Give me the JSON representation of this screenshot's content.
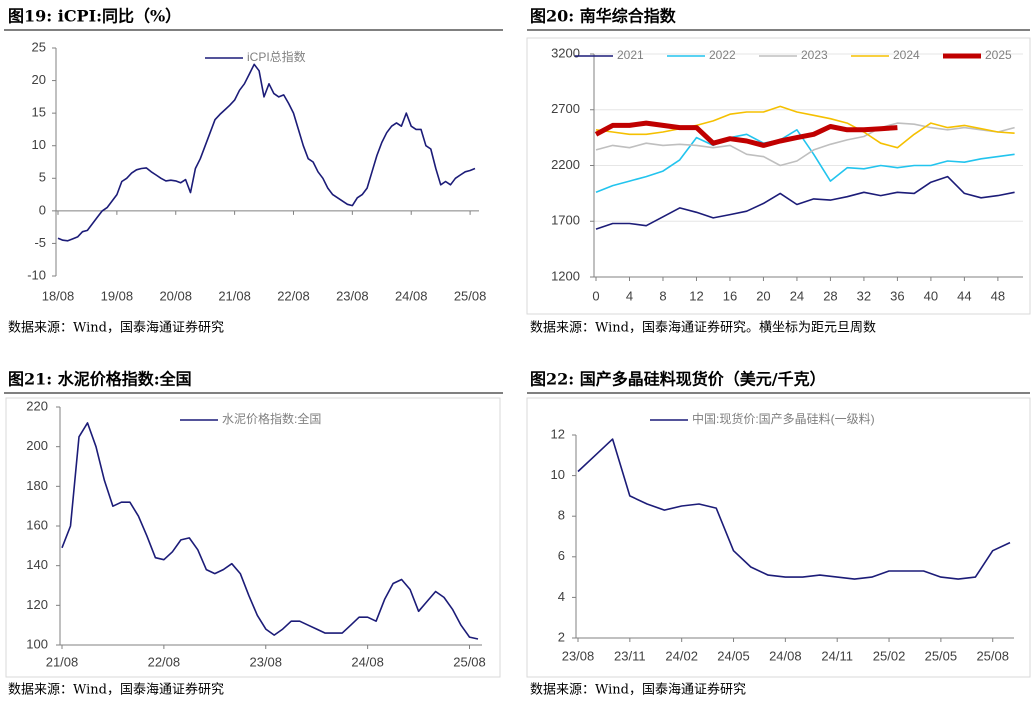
{
  "chart_data": [
    {
      "type": "line",
      "title": "图19: iCPI:同比（%）",
      "source": "数据来源：Wind，国泰海通证券研究",
      "categories": [
        "18/08",
        null,
        null,
        null,
        null,
        null,
        null,
        null,
        null,
        null,
        null,
        null,
        "19/08",
        null,
        null,
        null,
        null,
        null,
        null,
        null,
        null,
        null,
        null,
        null,
        "20/08",
        null,
        null,
        null,
        null,
        null,
        null,
        null,
        null,
        null,
        null,
        null,
        "21/08",
        null,
        null,
        null,
        null,
        null,
        null,
        null,
        null,
        null,
        null,
        null,
        "22/08",
        null,
        null,
        null,
        null,
        null,
        null,
        null,
        null,
        null,
        null,
        null,
        "23/08",
        null,
        null,
        null,
        null,
        null,
        null,
        null,
        null,
        null,
        null,
        null,
        "24/08",
        null,
        null,
        null,
        null,
        null,
        null,
        null,
        null,
        null,
        null,
        null,
        "25/08",
        null
      ],
      "series": [
        {
          "name": "iCPI总指数",
          "color": "#1c1c78",
          "values": [
            -4.2,
            -4.5,
            -4.6,
            -4.3,
            -4.0,
            -3.2,
            -3.0,
            -2.0,
            -1.0,
            0,
            0.5,
            1.5,
            2.5,
            4.5,
            5.0,
            5.8,
            6.3,
            6.5,
            6.6,
            6.0,
            5.5,
            5.0,
            4.6,
            4.7,
            4.6,
            4.3,
            4.8,
            2.8,
            6.5,
            8.0,
            10.0,
            12.0,
            14.0,
            14.8,
            15.5,
            16.2,
            17.0,
            18.5,
            19.5,
            21.0,
            22.5,
            21.5,
            17.5,
            19.5,
            18.0,
            17.5,
            17.8,
            16.5,
            15.0,
            12.5,
            10.0,
            8.0,
            7.5,
            6.0,
            5.0,
            3.5,
            2.5,
            2.0,
            1.5,
            1.0,
            0.8,
            2.0,
            2.5,
            3.5,
            6.0,
            8.5,
            10.5,
            12.0,
            13.0,
            13.5,
            13.0,
            15.0,
            13.0,
            12.5,
            12.5,
            10.0,
            9.5,
            6.5,
            4.0,
            4.5,
            4.0,
            5.0,
            5.5,
            6.0,
            6.2,
            6.5
          ]
        }
      ],
      "ylim": [
        -10,
        25
      ],
      "yticks": [
        -10,
        -5,
        0,
        5,
        10,
        15,
        20,
        25
      ],
      "grid": false,
      "legend": "top"
    },
    {
      "type": "line",
      "title": "图20: 南华综合指数",
      "source": "数据来源：Wind，国泰海通证券研究。横坐标为距元旦周数",
      "x": [
        0,
        2,
        4,
        6,
        8,
        10,
        12,
        14,
        16,
        18,
        20,
        22,
        24,
        26,
        28,
        30,
        32,
        34,
        36,
        38,
        40,
        42,
        44,
        46,
        48,
        50
      ],
      "series": [
        {
          "name": "2021",
          "color": "#1c1c78",
          "values": [
            1630,
            1680,
            1680,
            1660,
            1740,
            1820,
            1780,
            1730,
            1760,
            1790,
            1860,
            1950,
            1850,
            1900,
            1890,
            1920,
            1960,
            1930,
            1960,
            1950,
            2050,
            2100,
            1950,
            1910,
            1930,
            1960
          ]
        },
        {
          "name": "2022",
          "color": "#22c4ee",
          "values": [
            1960,
            2020,
            2060,
            2100,
            2150,
            2250,
            2450,
            2380,
            2450,
            2480,
            2400,
            2430,
            2520,
            2300,
            2060,
            2180,
            2170,
            2200,
            2180,
            2200,
            2200,
            2240,
            2230,
            2260,
            2280,
            2300
          ]
        },
        {
          "name": "2023",
          "color": "#bfbfbf",
          "values": [
            2340,
            2380,
            2360,
            2400,
            2380,
            2390,
            2380,
            2360,
            2380,
            2300,
            2280,
            2200,
            2240,
            2340,
            2390,
            2430,
            2460,
            2540,
            2580,
            2570,
            2540,
            2520,
            2540,
            2520,
            2500,
            2540
          ]
        },
        {
          "name": "2024",
          "color": "#f5c000",
          "values": [
            2520,
            2500,
            2480,
            2480,
            2500,
            2530,
            2560,
            2600,
            2660,
            2680,
            2680,
            2730,
            2680,
            2650,
            2620,
            2580,
            2500,
            2400,
            2360,
            2480,
            2580,
            2540,
            2560,
            2530,
            2500,
            2490
          ]
        },
        {
          "name": "2025",
          "color": "#c00000",
          "values": [
            2480,
            2560,
            2560,
            2580,
            2560,
            2540,
            2540,
            2400,
            2440,
            2420,
            2380,
            2420,
            2450,
            2480,
            2550,
            2520,
            2520,
            2530,
            2540,
            null,
            null,
            null,
            null,
            null,
            null,
            null
          ]
        }
      ],
      "xlim": [
        0,
        51
      ],
      "xticks": [
        0,
        4,
        8,
        12,
        16,
        20,
        24,
        28,
        32,
        36,
        40,
        44,
        48
      ],
      "ylim": [
        1200,
        3200
      ],
      "yticks": [
        1200,
        1700,
        2200,
        2700,
        3200
      ],
      "grid": true,
      "legend": "top"
    },
    {
      "type": "line",
      "title": "图21: 水泥价格指数:全国",
      "source": "数据来源：Wind，国泰海通证券研究",
      "categories": [
        "21/08",
        null,
        null,
        null,
        null,
        null,
        null,
        null,
        null,
        null,
        null,
        null,
        "22/08",
        null,
        null,
        null,
        null,
        null,
        null,
        null,
        null,
        null,
        null,
        null,
        "23/08",
        null,
        null,
        null,
        null,
        null,
        null,
        null,
        null,
        null,
        null,
        null,
        "24/08",
        null,
        null,
        null,
        null,
        null,
        null,
        null,
        null,
        null,
        null,
        null,
        "25/08",
        null
      ],
      "series": [
        {
          "name": "水泥价格指数:全国",
          "color": "#1c1c78",
          "values": [
            149,
            160,
            205,
            212,
            200,
            183,
            170,
            172,
            172,
            165,
            155,
            144,
            143,
            147,
            153,
            154,
            148,
            138,
            136,
            138,
            141,
            136,
            125,
            115,
            108,
            105,
            108,
            112,
            112,
            110,
            108,
            106,
            106,
            106,
            110,
            114,
            114,
            112,
            123,
            131,
            133,
            128,
            117,
            122,
            127,
            124,
            118,
            110,
            104,
            103
          ]
        }
      ],
      "ylim": [
        100,
        220
      ],
      "yticks": [
        100,
        120,
        140,
        160,
        180,
        200,
        220
      ],
      "grid": false,
      "legend": "top"
    },
    {
      "type": "line",
      "title": "图22: 国产多晶硅料现货价（美元/千克）",
      "source": "数据来源：Wind，国泰海通证券研究",
      "categories": [
        "23/08",
        null,
        null,
        "23/11",
        null,
        null,
        "24/02",
        null,
        null,
        "24/05",
        null,
        null,
        "24/08",
        null,
        null,
        "24/11",
        null,
        null,
        "25/02",
        null,
        null,
        "25/05",
        null,
        null,
        "25/08",
        null
      ],
      "series": [
        {
          "name": "中国:现货价:国产多晶硅料(一级料)",
          "color": "#1c1c78",
          "values": [
            10.2,
            11.0,
            11.8,
            9.0,
            8.6,
            8.3,
            8.5,
            8.6,
            8.4,
            6.3,
            5.5,
            5.1,
            5.0,
            5.0,
            5.1,
            5.0,
            4.9,
            5.0,
            5.3,
            5.3,
            5.3,
            5.0,
            4.9,
            5.0,
            6.3,
            6.7
          ]
        }
      ],
      "ylim": [
        2,
        12
      ],
      "yticks": [
        2,
        4,
        6,
        8,
        10,
        12
      ],
      "grid": false,
      "legend": "top"
    }
  ]
}
